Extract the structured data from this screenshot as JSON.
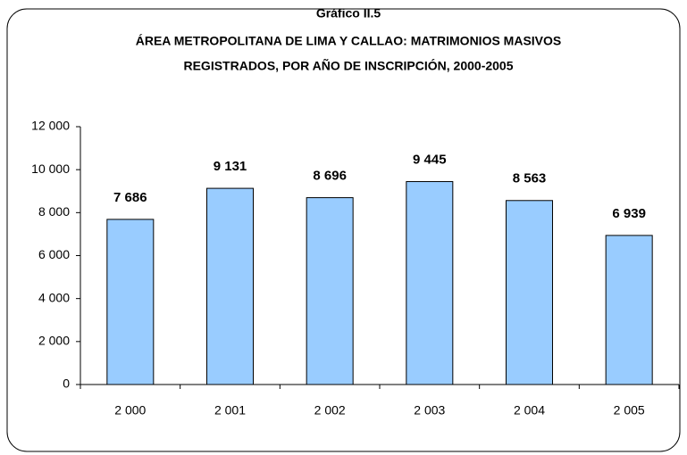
{
  "chart_data": {
    "type": "bar",
    "title": [
      "Gráfico II.5",
      "ÁREA METROPOLITANA DE LIMA Y CALLAO: MATRIMONIOS MASIVOS",
      "REGISTRADOS, POR AÑO DE INSCRIPCIÓN, 2000-2005"
    ],
    "categories": [
      "2 000",
      "2 001",
      "2 002",
      "2 003",
      "2 004",
      "2 005"
    ],
    "values": [
      7686,
      9131,
      8696,
      9445,
      8563,
      6939
    ],
    "value_labels": [
      "7 686",
      "9 131",
      "8 696",
      "9 445",
      "8 563",
      "6 939"
    ],
    "color": "#99ccff",
    "ylim": [
      0,
      12000
    ],
    "yticks": [
      0,
      {
        "value": 2000,
        "label": "2 000"
      },
      {
        "value": 4000,
        "label": "4 000"
      },
      {
        "value": 6000,
        "label": "6 000"
      },
      {
        "value": 8000,
        "label": "8 000"
      },
      {
        "value": 10000,
        "label": "10 000"
      },
      {
        "value": 12000,
        "label": "12 000"
      }
    ],
    "grid": false
  }
}
